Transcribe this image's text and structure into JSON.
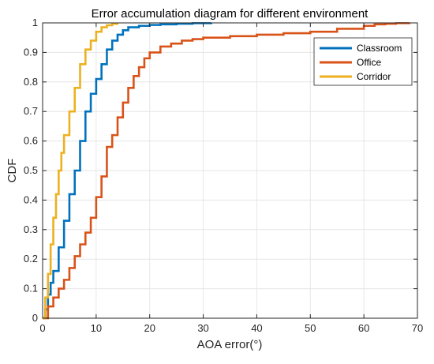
{
  "chart_data": {
    "type": "line",
    "title": "Error accumulation diagram for different environment",
    "xlabel": "AOA error(°)",
    "ylabel": "CDF",
    "xlim": [
      0,
      70
    ],
    "ylim": [
      0,
      1
    ],
    "x_ticks": [
      0,
      10,
      20,
      30,
      40,
      50,
      60,
      70
    ],
    "y_ticks": [
      0,
      0.1,
      0.2,
      0.3,
      0.4,
      0.5,
      0.6,
      0.7,
      0.8,
      0.9,
      1
    ],
    "grid": true,
    "legend_position": "top-right",
    "series": [
      {
        "name": "Classroom",
        "color": "#0072BD",
        "x": [
          0,
          0.5,
          1,
          1.5,
          2,
          3,
          4,
          5,
          6,
          7,
          8,
          9,
          10,
          11,
          12,
          13,
          14,
          15,
          16,
          18,
          20,
          22,
          25,
          28,
          31.5
        ],
        "y": [
          0,
          0.03,
          0.08,
          0.12,
          0.16,
          0.24,
          0.33,
          0.42,
          0.5,
          0.6,
          0.7,
          0.76,
          0.81,
          0.86,
          0.91,
          0.94,
          0.96,
          0.975,
          0.985,
          0.99,
          0.993,
          0.995,
          0.997,
          0.999,
          1
        ]
      },
      {
        "name": "Office",
        "color": "#D95319",
        "x": [
          0,
          1,
          2,
          3,
          4,
          5,
          6,
          7,
          8,
          9,
          10,
          11,
          12,
          13,
          14,
          15,
          16,
          17,
          18,
          19,
          20,
          22,
          24,
          26,
          28,
          30,
          35,
          40,
          45,
          50,
          55,
          60,
          62,
          64,
          66,
          68.5
        ],
        "y": [
          0,
          0.04,
          0.07,
          0.1,
          0.13,
          0.17,
          0.21,
          0.25,
          0.29,
          0.34,
          0.41,
          0.48,
          0.58,
          0.62,
          0.68,
          0.73,
          0.78,
          0.82,
          0.85,
          0.88,
          0.9,
          0.92,
          0.93,
          0.94,
          0.945,
          0.95,
          0.955,
          0.96,
          0.965,
          0.97,
          0.98,
          0.99,
          0.995,
          0.997,
          0.999,
          1
        ]
      },
      {
        "name": "Corridor",
        "color": "#EDB120",
        "x": [
          0,
          0.5,
          1,
          1.5,
          2,
          2.5,
          3,
          3.5,
          4,
          5,
          6,
          7,
          8,
          9,
          10,
          11,
          12,
          13,
          14
        ],
        "y": [
          0,
          0.07,
          0.15,
          0.25,
          0.34,
          0.42,
          0.5,
          0.56,
          0.62,
          0.7,
          0.78,
          0.86,
          0.91,
          0.94,
          0.97,
          0.985,
          0.992,
          0.997,
          1
        ]
      }
    ]
  }
}
